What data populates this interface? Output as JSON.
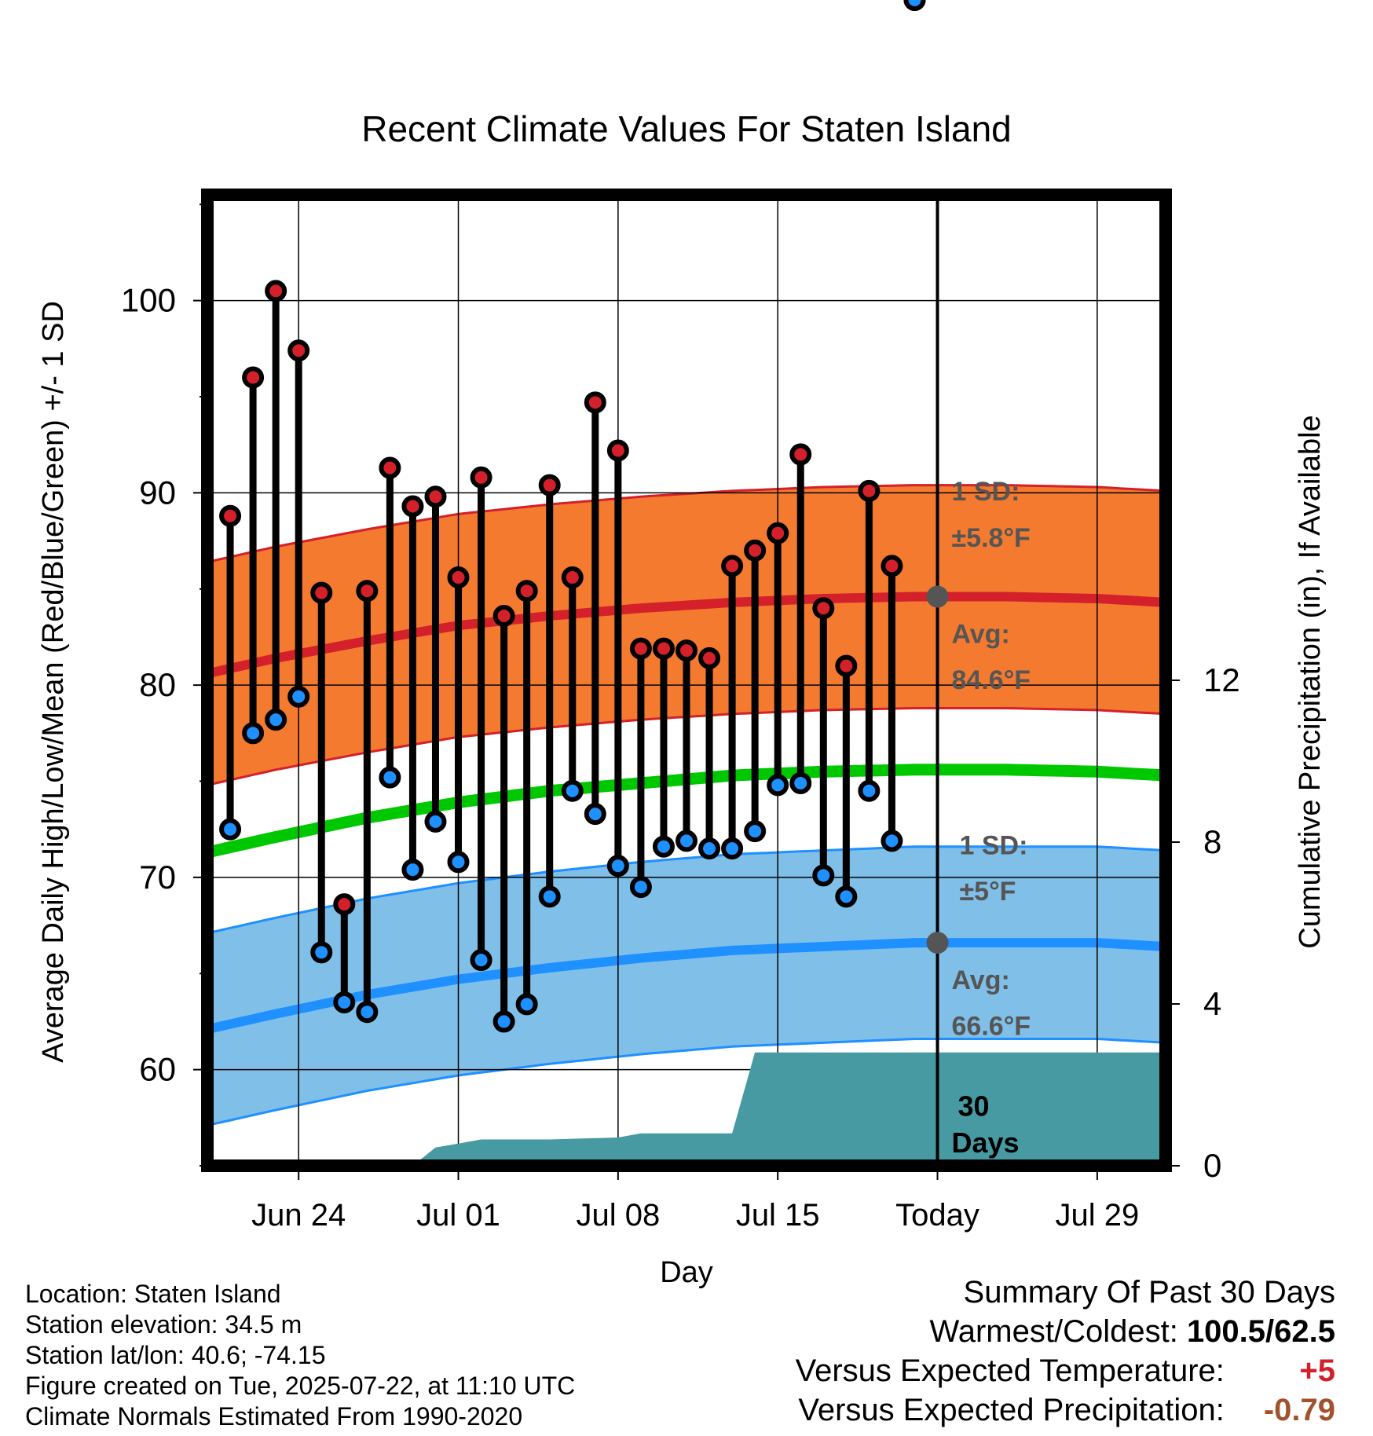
{
  "chart_data": {
    "type": "line",
    "title": "Recent Climate Values For Staten Island",
    "xlabel": "Day",
    "ylabel": "Average Daily High/Low/Mean (Red/Blue/Green) +/- 1 SD",
    "y2label": "Cumulative Precipitation (in), If Available",
    "ylim": [
      55,
      105.5
    ],
    "y2lim": [
      0,
      24
    ],
    "xlim": [
      "2025-06-20",
      "2025-08-01"
    ],
    "yticks": [
      60,
      70,
      80,
      90,
      100
    ],
    "y2ticks": [
      0,
      4,
      8,
      12
    ],
    "xticks": [
      {
        "date": "2025-06-24",
        "label": "Jun 24"
      },
      {
        "date": "2025-07-01",
        "label": "Jul 01"
      },
      {
        "date": "2025-07-08",
        "label": "Jul 08"
      },
      {
        "date": "2025-07-15",
        "label": "Jul 15"
      },
      {
        "date": "2025-07-22",
        "label": "Today"
      },
      {
        "date": "2025-07-29",
        "label": "Jul 29"
      }
    ],
    "grid": true,
    "today": "2025-07-22",
    "daily": {
      "dates": [
        "2025-06-21",
        "2025-06-22",
        "2025-06-23",
        "2025-06-24",
        "2025-06-25",
        "2025-06-26",
        "2025-06-27",
        "2025-06-28",
        "2025-06-29",
        "2025-06-30",
        "2025-07-01",
        "2025-07-02",
        "2025-07-03",
        "2025-07-04",
        "2025-07-05",
        "2025-07-06",
        "2025-07-07",
        "2025-07-08",
        "2025-07-09",
        "2025-07-10",
        "2025-07-11",
        "2025-07-12",
        "2025-07-13",
        "2025-07-14",
        "2025-07-15",
        "2025-07-16",
        "2025-07-17",
        "2025-07-18",
        "2025-07-19",
        "2025-07-20",
        "2025-07-21"
      ],
      "highs": [
        88.8,
        96.0,
        100.5,
        97.4,
        84.8,
        68.6,
        84.9,
        91.3,
        89.3,
        89.8,
        85.6,
        90.8,
        83.6,
        84.9,
        90.4,
        85.6,
        94.7,
        92.2,
        81.9,
        81.9,
        81.8,
        81.4,
        86.2,
        87.0,
        87.9,
        92.0,
        84.0,
        81.0,
        90.1,
        86.2
      ],
      "lows": [
        72.5,
        77.5,
        78.2,
        79.4,
        66.1,
        63.5,
        63.0,
        75.2,
        70.4,
        72.9,
        70.8,
        65.7,
        62.5,
        63.4,
        69.0,
        74.5,
        73.3,
        70.6,
        69.5,
        71.6,
        71.9,
        71.5,
        71.5,
        72.4,
        74.8,
        74.9,
        70.1,
        69.0,
        74.5,
        71.9
      ]
    },
    "normals": {
      "dates": [
        "2025-06-20",
        "2025-06-23",
        "2025-06-27",
        "2025-07-01",
        "2025-07-05",
        "2025-07-09",
        "2025-07-13",
        "2025-07-17",
        "2025-07-21",
        "2025-07-25",
        "2025-07-29",
        "2025-08-01"
      ],
      "high_avg": [
        80.6,
        81.4,
        82.3,
        83.1,
        83.6,
        84.0,
        84.3,
        84.5,
        84.6,
        84.6,
        84.5,
        84.3
      ],
      "low_avg": [
        62.1,
        62.9,
        63.9,
        64.7,
        65.3,
        65.8,
        66.2,
        66.4,
        66.6,
        66.6,
        66.6,
        66.4
      ],
      "mean_avg": [
        71.3,
        72.1,
        73.1,
        73.9,
        74.5,
        74.9,
        75.3,
        75.5,
        75.6,
        75.6,
        75.5,
        75.3
      ],
      "high_sd": 5.8,
      "low_sd": 5.0
    },
    "precipitation": {
      "dates": [
        "2025-06-20",
        "2025-06-29",
        "2025-06-30",
        "2025-07-01",
        "2025-07-02",
        "2025-07-05",
        "2025-07-08",
        "2025-07-09",
        "2025-07-13",
        "2025-07-14",
        "2025-07-22",
        "2025-08-01"
      ],
      "cumulative_in": [
        0,
        0,
        0.45,
        0.55,
        0.65,
        0.65,
        0.7,
        0.8,
        0.8,
        2.8,
        2.8,
        2.8
      ]
    },
    "annotations": {
      "high_sd_label": [
        "1 SD:",
        "±5.8°F"
      ],
      "high_avg_label": [
        "Avg:",
        "84.6°F"
      ],
      "low_sd_label": [
        "1 SD:",
        "±5°F"
      ],
      "low_avg_label": [
        "Avg:",
        "66.6°F"
      ],
      "precip_period_label": [
        "30",
        "Days"
      ],
      "high_avg_value": 84.6,
      "low_avg_value": 66.6
    },
    "colors": {
      "high": "#d4202a",
      "high_band": "#f47a2f",
      "low": "#1e90ff",
      "low_band": "#80bfe8",
      "mean": "#00c800",
      "precip": "#479aa2",
      "annotation": "#555555"
    }
  },
  "info": {
    "location": "Location: Staten Island",
    "elevation": "Station elevation: 34.5 m",
    "latlon": "Station lat/lon: 40.6; -74.15",
    "created": "Figure created on Tue, 2025-07-22, at 11:10 UTC",
    "normals": "Climate Normals Estimated From 1990-2020"
  },
  "summary": {
    "title": "Summary Of Past 30 Days",
    "warm_cold_label": "Warmest/Coldest:",
    "warm_cold_value": "100.5/62.5",
    "temp_label": "Versus Expected Temperature:",
    "temp_value": "+5",
    "temp_color": "#d4202a",
    "precip_label": "Versus Expected Precipitation:",
    "precip_value": "-0.79",
    "precip_color": "#a0522d"
  }
}
